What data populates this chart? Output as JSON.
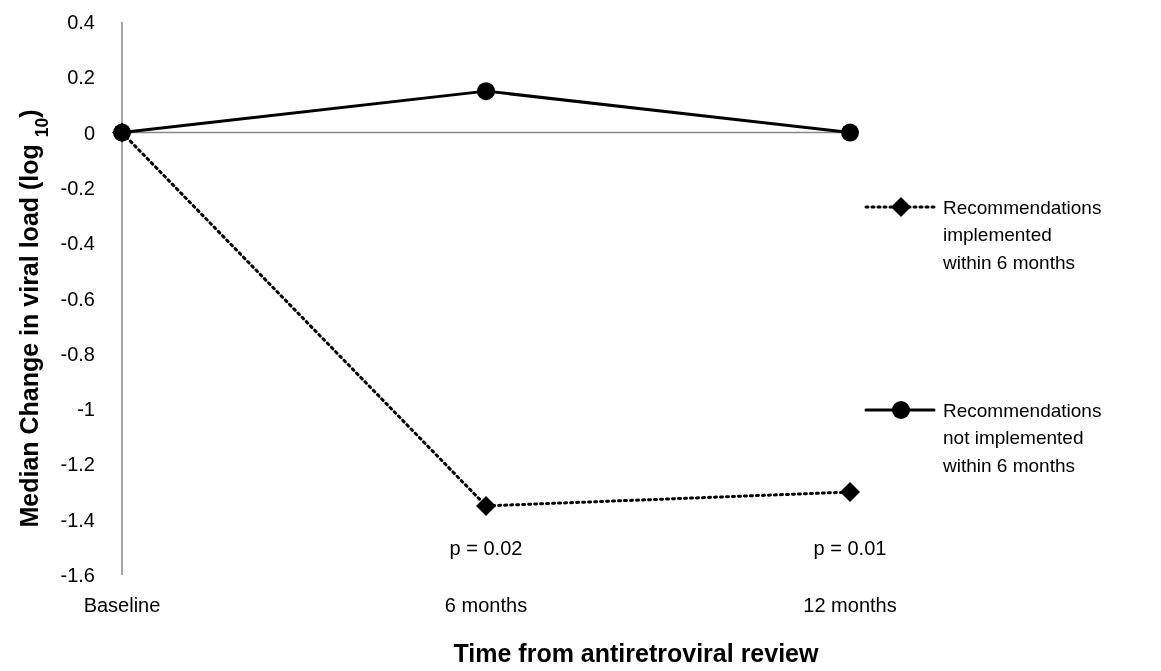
{
  "chart_data": {
    "type": "line",
    "xlabel": "Time from antiretroviral review",
    "ylabel": "Median Change in viral load (log $_{10}$)",
    "categories": [
      "Baseline",
      "6 months",
      "12 months"
    ],
    "series": [
      {
        "name": "Recommendations implemented within 6 months",
        "color": "#000000",
        "values": [
          0,
          -1.35,
          -1.3
        ],
        "marker": "diamond",
        "line_style": "dotted"
      },
      {
        "name": "Recommendations not implemented within 6 months",
        "color": "#000000",
        "values": [
          0,
          0.15,
          0
        ],
        "marker": "circle",
        "line_style": "solid"
      }
    ],
    "ylim": [
      -1.6,
      0.4
    ],
    "yticks": [
      0.4,
      0.2,
      0,
      -0.2,
      -0.4,
      -0.6,
      -0.8,
      -1,
      -1.2,
      -1.4,
      -1.6
    ],
    "annotations": [
      "p = 0.02",
      "p = 0.01"
    ],
    "legend": "right"
  }
}
